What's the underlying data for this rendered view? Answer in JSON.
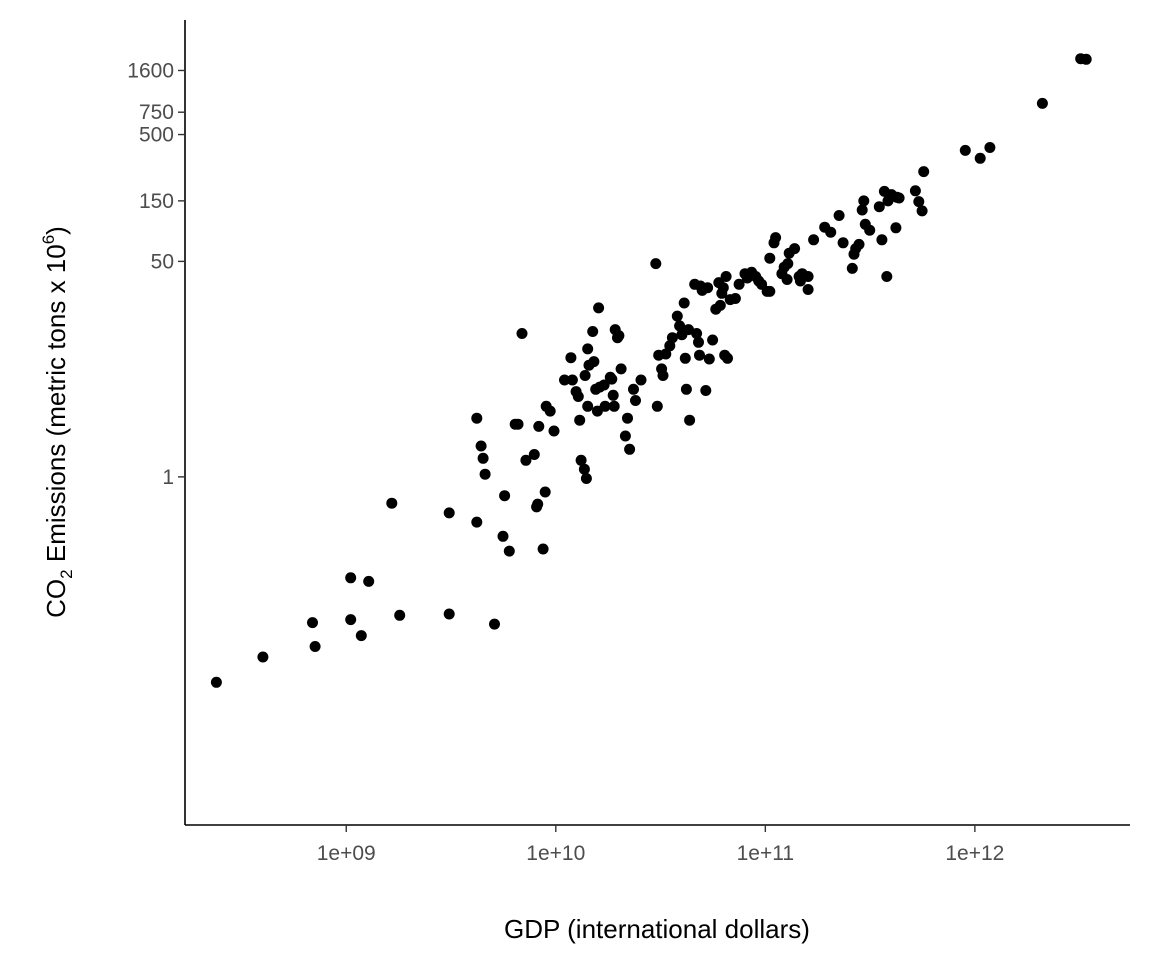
{
  "chart_data": {
    "type": "scatter",
    "xlabel": "GDP (international dollars)",
    "ylabel": {
      "part1": "CO",
      "sub": "2",
      "part2": " Emissions (metric tons x 10",
      "sup": "6",
      "part3": ")"
    },
    "x_scale": "log10",
    "y_scale": "log10",
    "xlim": [
      170000000,
      5500000000000
    ],
    "ylim": [
      0.0018,
      4000
    ],
    "grid": false,
    "legend": "none",
    "x_ticks": [
      {
        "value": 1000000000,
        "label": "1e+09"
      },
      {
        "value": 10000000000,
        "label": "1e+10"
      },
      {
        "value": 100000000000,
        "label": "1e+11"
      },
      {
        "value": 1000000000000,
        "label": "1e+12"
      }
    ],
    "y_ticks": [
      {
        "value": 1,
        "label": "1"
      },
      {
        "value": 50,
        "label": "50"
      },
      {
        "value": 150,
        "label": "150"
      },
      {
        "value": 500,
        "label": "500"
      },
      {
        "value": 750,
        "label": "750"
      },
      {
        "value": 1600,
        "label": "1600"
      }
    ],
    "colors": {
      "points": "#000000",
      "axis": "#000000",
      "tick_labels": "#4d4d4d"
    },
    "points": [
      [
        240000000.0,
        0.024
      ],
      [
        400000000.0,
        0.038
      ],
      [
        690000000.0,
        0.071
      ],
      [
        710000000.0,
        0.046
      ],
      [
        1050000000.0,
        0.16
      ],
      [
        1050000000.0,
        0.075
      ],
      [
        1180000000.0,
        0.056
      ],
      [
        1280000000.0,
        0.15
      ],
      [
        1650000000.0,
        0.62
      ],
      [
        1800000000.0,
        0.081
      ],
      [
        3100000000.0,
        0.52
      ],
      [
        3100000000.0,
        0.083
      ],
      [
        4200000000.0,
        2.9
      ],
      [
        4400000000.0,
        1.75
      ],
      [
        4500000000.0,
        1.4
      ],
      [
        4600000000.0,
        1.05
      ],
      [
        4200000000.0,
        0.44
      ],
      [
        5100000000.0,
        0.069
      ],
      [
        5600000000.0,
        0.34
      ],
      [
        5700000000.0,
        0.71
      ],
      [
        6000000000.0,
        0.26
      ],
      [
        6400000000.0,
        2.6
      ],
      [
        6600000000.0,
        2.6
      ],
      [
        6900000000.0,
        13.5
      ],
      [
        7200000000.0,
        1.35
      ],
      [
        7900000000.0,
        1.5
      ],
      [
        8100000000.0,
        0.58
      ],
      [
        8200000000.0,
        0.61
      ],
      [
        8300000000.0,
        2.5
      ],
      [
        8700000000.0,
        0.27
      ],
      [
        8900000000.0,
        0.76
      ],
      [
        9000000000.0,
        3.6
      ],
      [
        9400000000.0,
        3.3
      ],
      [
        9800000000.0,
        2.3
      ],
      [
        11000000000.0,
        5.8
      ],
      [
        11800000000.0,
        8.7
      ],
      [
        12000000000.0,
        5.8
      ],
      [
        12500000000.0,
        4.7
      ],
      [
        12800000000.0,
        4.3
      ],
      [
        13000000000.0,
        2.8
      ],
      [
        13200000000.0,
        1.35
      ],
      [
        13700000000.0,
        1.15
      ],
      [
        13800000000.0,
        6.3
      ],
      [
        14000000000.0,
        0.97
      ],
      [
        14200000000.0,
        3.6
      ],
      [
        14200000000.0,
        10.2
      ],
      [
        14400000000.0,
        7.6
      ],
      [
        15000000000.0,
        14
      ],
      [
        15200000000.0,
        8.1
      ],
      [
        15500000000.0,
        4.9
      ],
      [
        15800000000.0,
        3.3
      ],
      [
        16000000000.0,
        21.5
      ],
      [
        16200000000.0,
        5.1
      ],
      [
        17000000000.0,
        5.3
      ],
      [
        17200000000.0,
        3.6
      ],
      [
        18200000000.0,
        6.1
      ],
      [
        18500000000.0,
        5.9
      ],
      [
        18800000000.0,
        4.4
      ],
      [
        19000000000.0,
        3.6
      ],
      [
        19200000000.0,
        14.5
      ],
      [
        19700000000.0,
        12.5
      ],
      [
        20000000000.0,
        13
      ],
      [
        20500000000.0,
        7.1
      ],
      [
        21500000000.0,
        2.1
      ],
      [
        22000000000.0,
        2.9
      ],
      [
        22500000000.0,
        1.65
      ],
      [
        23500000000.0,
        4.9
      ],
      [
        24000000000.0,
        4.0
      ],
      [
        25500000000.0,
        5.8
      ],
      [
        30000000000.0,
        48
      ],
      [
        30500000000.0,
        3.6
      ],
      [
        31000000000.0,
        9.1
      ],
      [
        32000000000.0,
        7.1
      ],
      [
        32500000000.0,
        6.3
      ],
      [
        33500000000.0,
        9.3
      ],
      [
        35000000000.0,
        10.8
      ],
      [
        36000000000.0,
        12.5
      ],
      [
        38000000000.0,
        18.5
      ],
      [
        39000000000.0,
        15.5
      ],
      [
        40000000000.0,
        13.2
      ],
      [
        41000000000.0,
        23.5
      ],
      [
        41500000000.0,
        8.6
      ],
      [
        42000000000.0,
        4.9
      ],
      [
        43000000000.0,
        14.5
      ],
      [
        43500000000.0,
        2.8
      ],
      [
        46000000000.0,
        33
      ],
      [
        47000000000.0,
        13.5
      ],
      [
        48000000000.0,
        11.5
      ],
      [
        48500000000.0,
        9.1
      ],
      [
        49000000000.0,
        32
      ],
      [
        50000000000.0,
        29.5
      ],
      [
        52000000000.0,
        4.8
      ],
      [
        53000000000.0,
        31
      ],
      [
        54000000000.0,
        8.5
      ],
      [
        56000000000.0,
        12
      ],
      [
        58000000000.0,
        21
      ],
      [
        60000000000.0,
        34
      ],
      [
        61000000000.0,
        22.5
      ],
      [
        62000000000.0,
        28
      ],
      [
        63000000000.0,
        31
      ],
      [
        64000000000.0,
        9.1
      ],
      [
        65000000000.0,
        38
      ],
      [
        66000000000.0,
        8.6
      ],
      [
        68000000000.0,
        25
      ],
      [
        72000000000.0,
        25.5
      ],
      [
        75000000000.0,
        33
      ],
      [
        80000000000.0,
        40
      ],
      [
        82000000000.0,
        37
      ],
      [
        86000000000.0,
        41
      ],
      [
        90000000000.0,
        38
      ],
      [
        93000000000.0,
        35
      ],
      [
        96000000000.0,
        33
      ],
      [
        102000000000.0,
        29
      ],
      [
        105000000000.0,
        29
      ],
      [
        105000000000.0,
        53
      ],
      [
        110000000000.0,
        70
      ],
      [
        112000000000.0,
        77
      ],
      [
        120000000000.0,
        40
      ],
      [
        123000000000.0,
        45
      ],
      [
        127000000000.0,
        36
      ],
      [
        128000000000.0,
        48
      ],
      [
        130000000000.0,
        58
      ],
      [
        138000000000.0,
        63
      ],
      [
        145000000000.0,
        38
      ],
      [
        147000000000.0,
        35
      ],
      [
        150000000000.0,
        40
      ],
      [
        160000000000.0,
        30
      ],
      [
        160000000000.0,
        38
      ],
      [
        170000000000.0,
        74
      ],
      [
        192000000000.0,
        93
      ],
      [
        205000000000.0,
        85
      ],
      [
        225000000000.0,
        115
      ],
      [
        235000000000.0,
        70
      ],
      [
        260000000000.0,
        44
      ],
      [
        265000000000.0,
        57
      ],
      [
        270000000000.0,
        63
      ],
      [
        280000000000.0,
        68
      ],
      [
        290000000000.0,
        127
      ],
      [
        295000000000.0,
        150
      ],
      [
        300000000000.0,
        98
      ],
      [
        315000000000.0,
        88
      ],
      [
        350000000000.0,
        135
      ],
      [
        360000000000.0,
        74
      ],
      [
        370000000000.0,
        178
      ],
      [
        380000000000.0,
        38
      ],
      [
        385000000000.0,
        150
      ],
      [
        400000000000.0,
        168
      ],
      [
        420000000000.0,
        92
      ],
      [
        425000000000.0,
        160
      ],
      [
        435000000000.0,
        158
      ],
      [
        520000000000.0,
        180
      ],
      [
        540000000000.0,
        148
      ],
      [
        560000000000.0,
        125
      ],
      [
        570000000000.0,
        255
      ],
      [
        900000000000.0,
        375
      ],
      [
        1060000000000.0,
        325
      ],
      [
        1180000000000.0,
        395
      ],
      [
        2100000000000.0,
        880
      ],
      [
        3200000000000.0,
        1980
      ],
      [
        3400000000000.0,
        1960
      ]
    ]
  }
}
